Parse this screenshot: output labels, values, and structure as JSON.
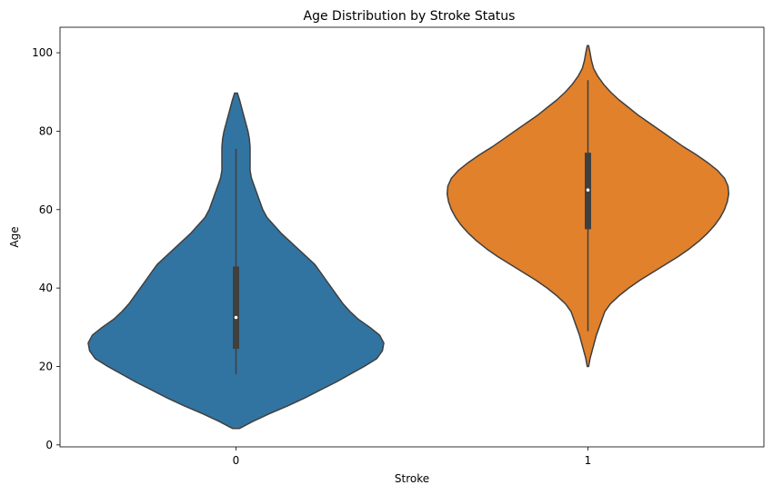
{
  "chart_data": {
    "type": "violin",
    "title": "Age Distribution by Stroke Status",
    "xlabel": "Stroke",
    "ylabel": "Age",
    "categories": [
      "0",
      "1"
    ],
    "ylim": [
      -0.5,
      106.5
    ],
    "yticks": [
      0,
      20,
      40,
      60,
      80,
      100
    ],
    "grid": false,
    "legend": "none",
    "series": [
      {
        "category": "0",
        "color": "#3274a1",
        "density": [
          [
            4.2,
            0.025
          ],
          [
            6,
            0.12
          ],
          [
            8,
            0.24
          ],
          [
            10,
            0.37
          ],
          [
            12,
            0.49
          ],
          [
            14,
            0.6
          ],
          [
            16,
            0.71
          ],
          [
            18,
            0.81
          ],
          [
            20,
            0.91
          ],
          [
            22,
            1.0
          ],
          [
            24,
            1.04
          ],
          [
            26,
            1.05
          ],
          [
            28,
            1.02
          ],
          [
            30,
            0.95
          ],
          [
            32,
            0.87
          ],
          [
            34,
            0.81
          ],
          [
            36,
            0.76
          ],
          [
            38,
            0.72
          ],
          [
            40,
            0.68
          ],
          [
            42,
            0.64
          ],
          [
            44,
            0.6
          ],
          [
            46,
            0.56
          ],
          [
            48,
            0.5
          ],
          [
            50,
            0.44
          ],
          [
            52,
            0.38
          ],
          [
            54,
            0.32
          ],
          [
            56,
            0.27
          ],
          [
            58,
            0.22
          ],
          [
            60,
            0.19
          ],
          [
            62,
            0.17
          ],
          [
            64,
            0.15
          ],
          [
            66,
            0.13
          ],
          [
            68,
            0.11
          ],
          [
            70,
            0.1
          ],
          [
            72,
            0.1
          ],
          [
            74,
            0.1
          ],
          [
            76,
            0.1
          ],
          [
            78,
            0.095
          ],
          [
            80,
            0.085
          ],
          [
            82,
            0.07
          ],
          [
            84,
            0.055
          ],
          [
            86,
            0.04
          ],
          [
            88,
            0.025
          ],
          [
            89.7,
            0.01
          ]
        ],
        "whisker": [
          18,
          75.5
        ],
        "quartiles": [
          24.5,
          45.5
        ],
        "median": 32.5
      },
      {
        "category": "1",
        "color": "#e1812c",
        "density": [
          [
            20,
            0.005
          ],
          [
            22,
            0.015
          ],
          [
            24,
            0.03
          ],
          [
            26,
            0.045
          ],
          [
            28,
            0.06
          ],
          [
            30,
            0.08
          ],
          [
            32,
            0.1
          ],
          [
            34,
            0.12
          ],
          [
            36,
            0.16
          ],
          [
            38,
            0.22
          ],
          [
            40,
            0.29
          ],
          [
            42,
            0.37
          ],
          [
            44,
            0.46
          ],
          [
            46,
            0.55
          ],
          [
            48,
            0.64
          ],
          [
            50,
            0.72
          ],
          [
            52,
            0.79
          ],
          [
            54,
            0.85
          ],
          [
            56,
            0.9
          ],
          [
            58,
            0.94
          ],
          [
            60,
            0.97
          ],
          [
            62,
            0.99
          ],
          [
            64,
            1.0
          ],
          [
            66,
            0.995
          ],
          [
            68,
            0.97
          ],
          [
            70,
            0.92
          ],
          [
            72,
            0.85
          ],
          [
            74,
            0.77
          ],
          [
            76,
            0.68
          ],
          [
            78,
            0.6
          ],
          [
            80,
            0.52
          ],
          [
            82,
            0.44
          ],
          [
            84,
            0.36
          ],
          [
            86,
            0.29
          ],
          [
            88,
            0.22
          ],
          [
            90,
            0.16
          ],
          [
            92,
            0.11
          ],
          [
            94,
            0.07
          ],
          [
            96,
            0.04
          ],
          [
            98,
            0.025
          ],
          [
            100,
            0.015
          ],
          [
            101.8,
            0.005
          ]
        ],
        "whisker": [
          29,
          93
        ],
        "quartiles": [
          55,
          74.5
        ],
        "median": 65
      }
    ]
  }
}
